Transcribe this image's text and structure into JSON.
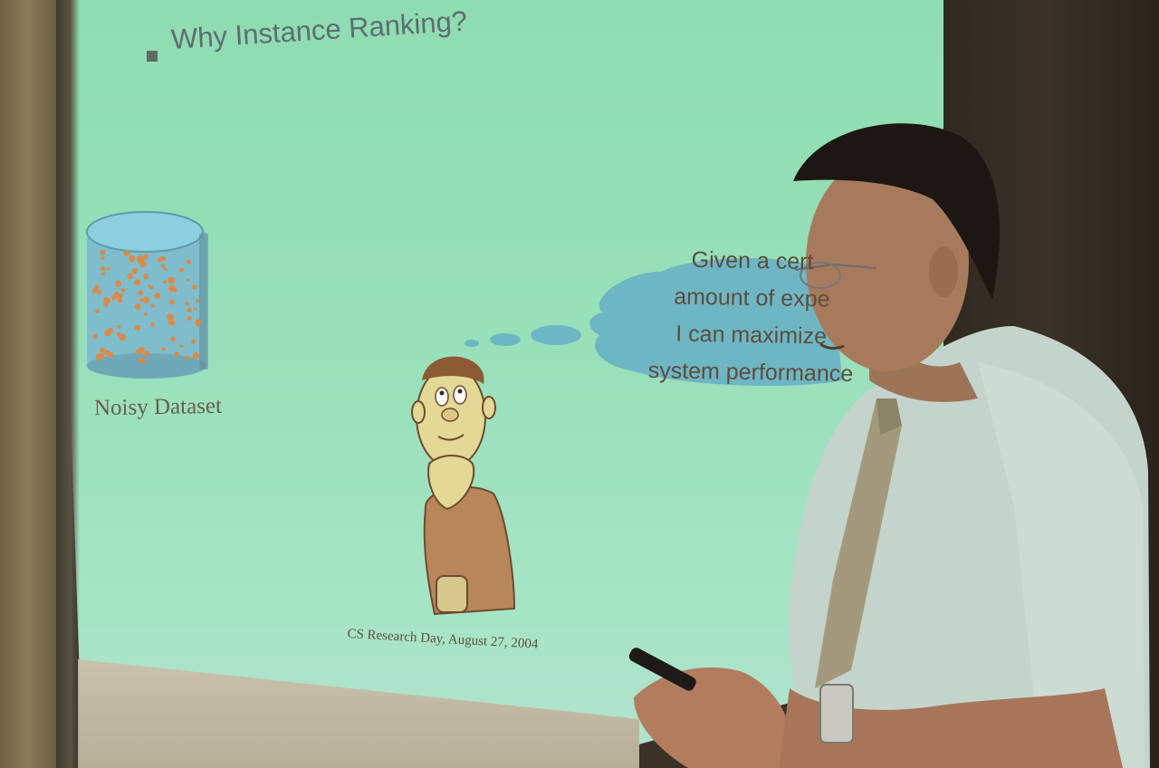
{
  "slide": {
    "title": "Why Instance Ranking?",
    "dataset_label": "Noisy Dataset",
    "thought_lines": [
      "Given a cert",
      "amount of expe",
      "I can maximize",
      "system performance"
    ],
    "footer": "CS Research Day,  August 27, 2004"
  },
  "colors": {
    "screen": "#98e0ba",
    "thought_bubble": "#6fb6c4",
    "cylinder": "#7fbfcf",
    "dots": "#d98a4a"
  }
}
